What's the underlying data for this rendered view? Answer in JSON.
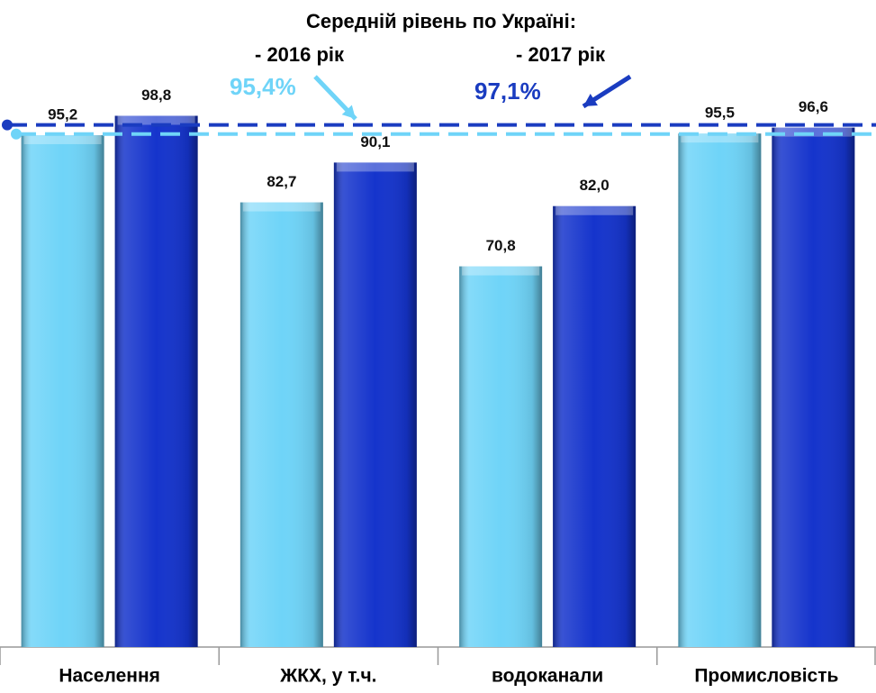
{
  "chart_data": {
    "type": "bar",
    "title": "Середній рівень по Україні:",
    "categories": [
      "Населення",
      "ЖКХ, у т.ч.",
      "водоканали",
      "Промисловість"
    ],
    "series": [
      {
        "color": "#6fd4f8",
        "values": [
          95.2,
          82.7,
          70.8,
          95.5
        ],
        "value_labels": [
          "95,2",
          "82,7",
          "70,8",
          "95,5"
        ]
      },
      {
        "color": "#1534cc",
        "values": [
          98.8,
          90.1,
          82.0,
          96.6
        ],
        "value_labels": [
          "98,8",
          "90,1",
          "82,0",
          "96,6"
        ]
      }
    ],
    "reference_lines": [
      {
        "label": "- 2016 рік",
        "value": 95.4,
        "value_label": "95,4%",
        "color": "#6fd4f8"
      },
      {
        "label": "- 2017 рік",
        "value": 97.1,
        "value_label": "97,1%",
        "color": "#1a3cc0"
      }
    ],
    "ylim": [
      0,
      120
    ]
  }
}
